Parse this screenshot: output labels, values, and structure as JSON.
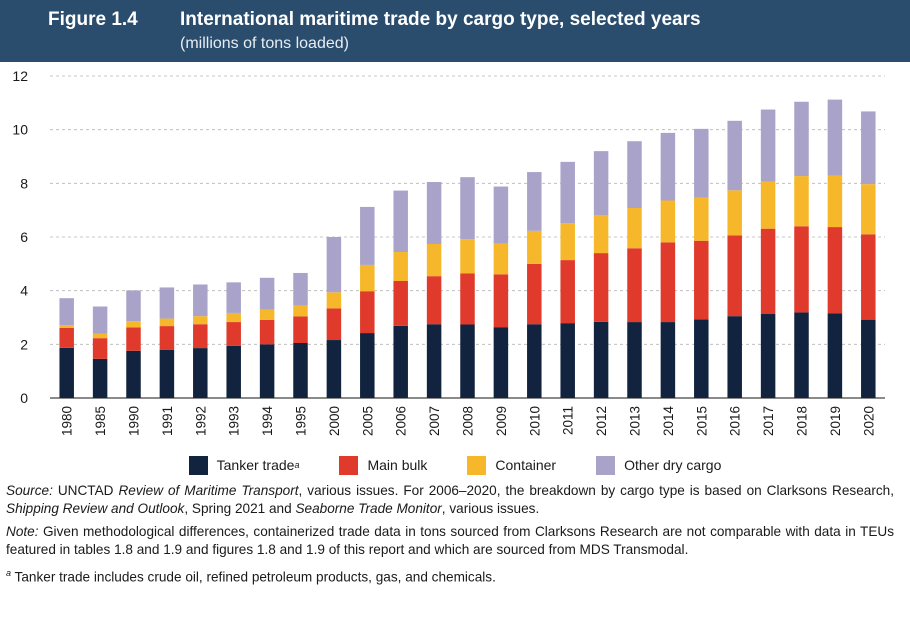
{
  "header": {
    "figure_label": "Figure 1.4",
    "title": "International maritime trade by cargo type, selected years",
    "subtitle": "(millions of tons loaded)"
  },
  "colors": {
    "header_bg": "#2a4d6e",
    "tanker": "#12233f",
    "main_bulk": "#e03a2c",
    "container": "#f6b82a",
    "other_dry": "#a9a3c9"
  },
  "chart_data": {
    "type": "bar",
    "stacked": true,
    "categories": [
      "1980",
      "1985",
      "1990",
      "1991",
      "1992",
      "1993",
      "1994",
      "1995",
      "2000",
      "2005",
      "2006",
      "2007",
      "2008",
      "2009",
      "2010",
      "2011",
      "2012",
      "2013",
      "2014",
      "2015",
      "2016",
      "2017",
      "2018",
      "2019",
      "2020"
    ],
    "series": [
      {
        "name": "Tanker trade",
        "values": [
          1.87,
          1.46,
          1.76,
          1.79,
          1.86,
          1.94,
          2.0,
          2.05,
          2.16,
          2.42,
          2.69,
          2.75,
          2.74,
          2.64,
          2.75,
          2.79,
          2.84,
          2.83,
          2.83,
          2.93,
          3.05,
          3.13,
          3.19,
          3.16,
          2.92
        ]
      },
      {
        "name": "Main bulk",
        "values": [
          0.74,
          0.77,
          0.87,
          0.89,
          0.89,
          0.89,
          0.91,
          0.99,
          1.18,
          1.56,
          1.67,
          1.79,
          1.9,
          1.97,
          2.25,
          2.35,
          2.56,
          2.75,
          2.97,
          2.93,
          3.01,
          3.18,
          3.21,
          3.21,
          3.18
        ]
      },
      {
        "name": "Container",
        "values": [
          0.1,
          0.16,
          0.23,
          0.28,
          0.3,
          0.34,
          0.38,
          0.4,
          0.6,
          0.98,
          1.08,
          1.2,
          1.28,
          1.14,
          1.23,
          1.37,
          1.42,
          1.5,
          1.56,
          1.6,
          1.68,
          1.76,
          1.87,
          1.92,
          1.87
        ]
      },
      {
        "name": "Other dry cargo",
        "values": [
          1.01,
          1.02,
          1.15,
          1.16,
          1.18,
          1.14,
          1.19,
          1.22,
          2.06,
          2.16,
          2.29,
          2.31,
          2.31,
          2.13,
          2.19,
          2.29,
          2.38,
          2.49,
          2.52,
          2.57,
          2.59,
          2.68,
          2.77,
          2.83,
          2.71
        ]
      }
    ],
    "yticks": [
      0,
      2,
      4,
      6,
      8,
      10,
      12
    ],
    "ylim": [
      0,
      12
    ],
    "grid": true,
    "legend_position": "bottom"
  },
  "legend": {
    "tanker": "Tanker trade",
    "tanker_sup": "a",
    "main_bulk": "Main bulk",
    "container": "Container",
    "other_dry": "Other dry cargo"
  },
  "notes": {
    "source_label": "Source:",
    "source_t1": " UNCTAD ",
    "source_i1": "Review of Maritime Transport",
    "source_t2": ", various issues. For 2006–2020, the breakdown by cargo type is based on Clarksons Research, ",
    "source_i2": "Shipping Review and Outlook",
    "source_t3": ", Spring 2021 and ",
    "source_i3": "Seaborne Trade Monitor",
    "source_t4": ", various issues.",
    "note_label": "Note:",
    "note_text": " Given methodological differences, containerized trade data in tons sourced from Clarksons Research are not comparable with data in TEUs featured in tables 1.8 and 1.9 and figures 1.8 and 1.9 of this report and which are sourced from MDS Transmodal.",
    "footnote_sup": "a",
    "footnote_text": " Tanker trade includes crude oil, refined petroleum products, gas, and chemicals."
  }
}
